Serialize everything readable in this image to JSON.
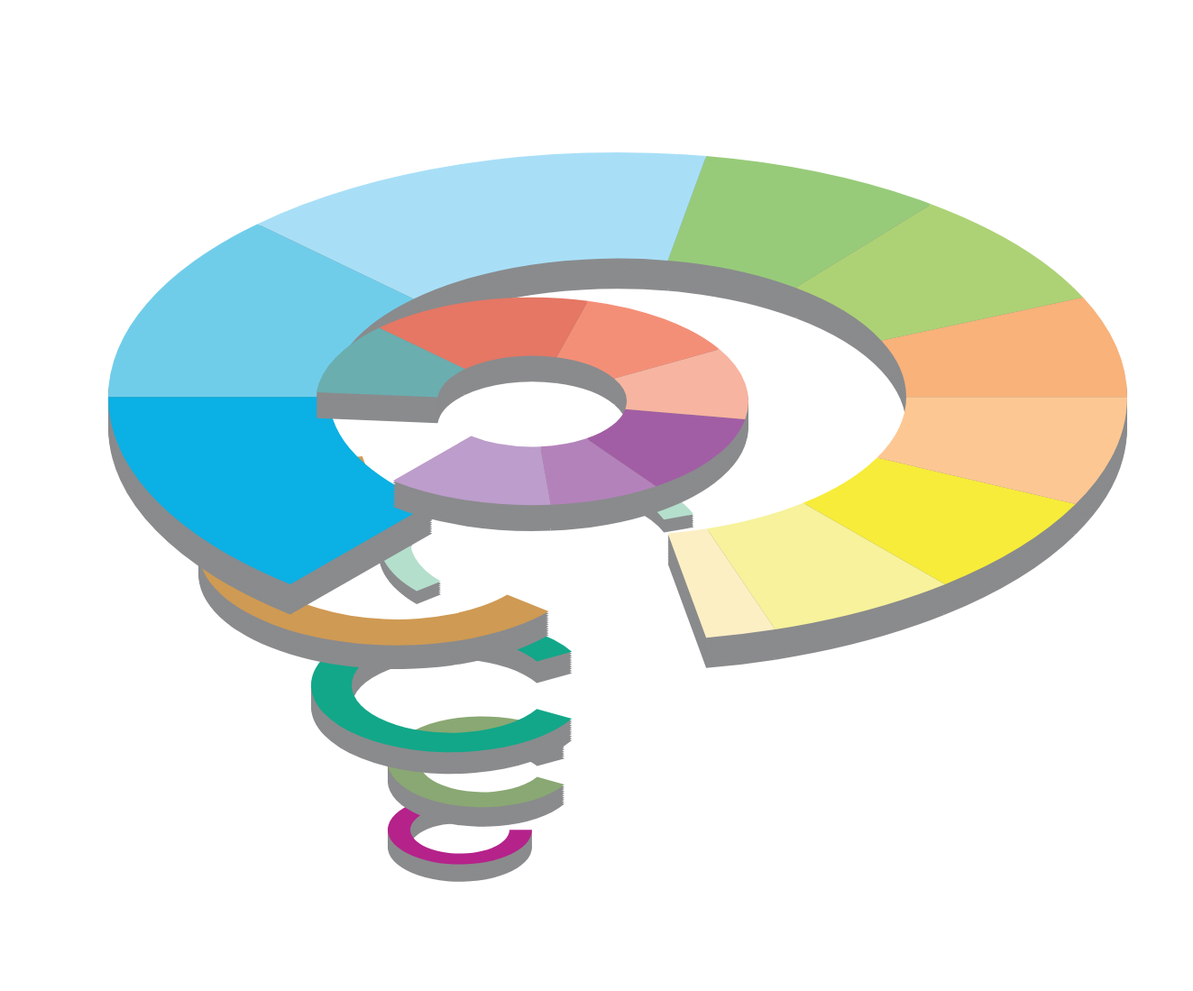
{
  "chart_data": {
    "type": "spiral",
    "series": [
      {
        "values": [
          8,
          22,
          24,
          26,
          24,
          28,
          28,
          55,
          45,
          50
        ],
        "colors": [
          "#fcefc4",
          "#f7f29b",
          "#f7ec3a",
          "#fdc793",
          "#f8b27a",
          "#add275",
          "#97cb7a",
          "#a8dff7",
          "#70cdea",
          "#0bb0e4"
        ]
      },
      {
        "values": [
          45,
          30,
          45,
          40,
          45,
          60,
          40
        ],
        "colors": [
          "#bd9dcb",
          "#b482bb",
          "#a25ea4",
          "#f7b4a0",
          "#f48f77",
          "#e57764",
          "#6aaeb0"
        ]
      },
      {
        "values": [
          220
        ],
        "colors": [
          "#cf9a53"
        ]
      },
      {
        "values": [
          200
        ],
        "colors": [
          "#b4dfcc"
        ]
      },
      {
        "values": [
          300
        ],
        "colors": [
          "#12a789"
        ]
      },
      {
        "values": [
          300
        ],
        "colors": [
          "#8aa873"
        ]
      },
      {
        "values": [
          300
        ],
        "colors": [
          "#b5228a"
        ]
      }
    ]
  }
}
